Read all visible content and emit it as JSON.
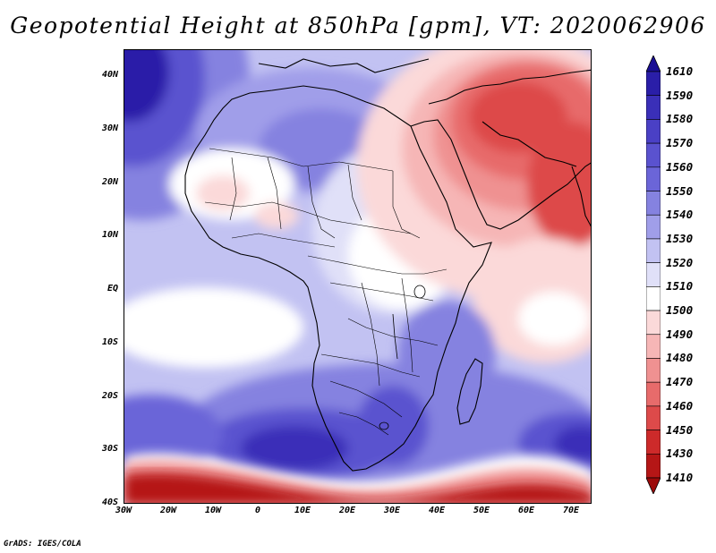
{
  "title": "Geopotential Height at 850hPa [gpm], VT: 2020062906",
  "map": {
    "lat_labels": [
      "40N",
      "30N",
      "20N",
      "10N",
      "EQ",
      "10S",
      "20S",
      "30S",
      "40S"
    ],
    "lon_labels": [
      "30W",
      "20W",
      "10W",
      "0",
      "10E",
      "20E",
      "30E",
      "40E",
      "50E",
      "60E",
      "70E"
    ]
  },
  "colorbar": {
    "levels": [
      "1610",
      "1590",
      "1580",
      "1570",
      "1560",
      "1550",
      "1540",
      "1530",
      "1520",
      "1510",
      "1500",
      "1490",
      "1480",
      "1470",
      "1460",
      "1450",
      "1430",
      "1410"
    ],
    "colors": [
      "#1a0e94",
      "#2a1ea8",
      "#3a2fb8",
      "#4a40c5",
      "#5a52cf",
      "#6b65d8",
      "#8582e0",
      "#a09ee9",
      "#c2c2f2",
      "#e0e0f8",
      "#ffffff",
      "#fbd9d9",
      "#f6b6b6",
      "#ef9191",
      "#e76b6b",
      "#dd4a4a",
      "#cd2a2a",
      "#b51616",
      "#9c0a0a"
    ]
  },
  "credit": "GrADS: IGES/COLA"
}
